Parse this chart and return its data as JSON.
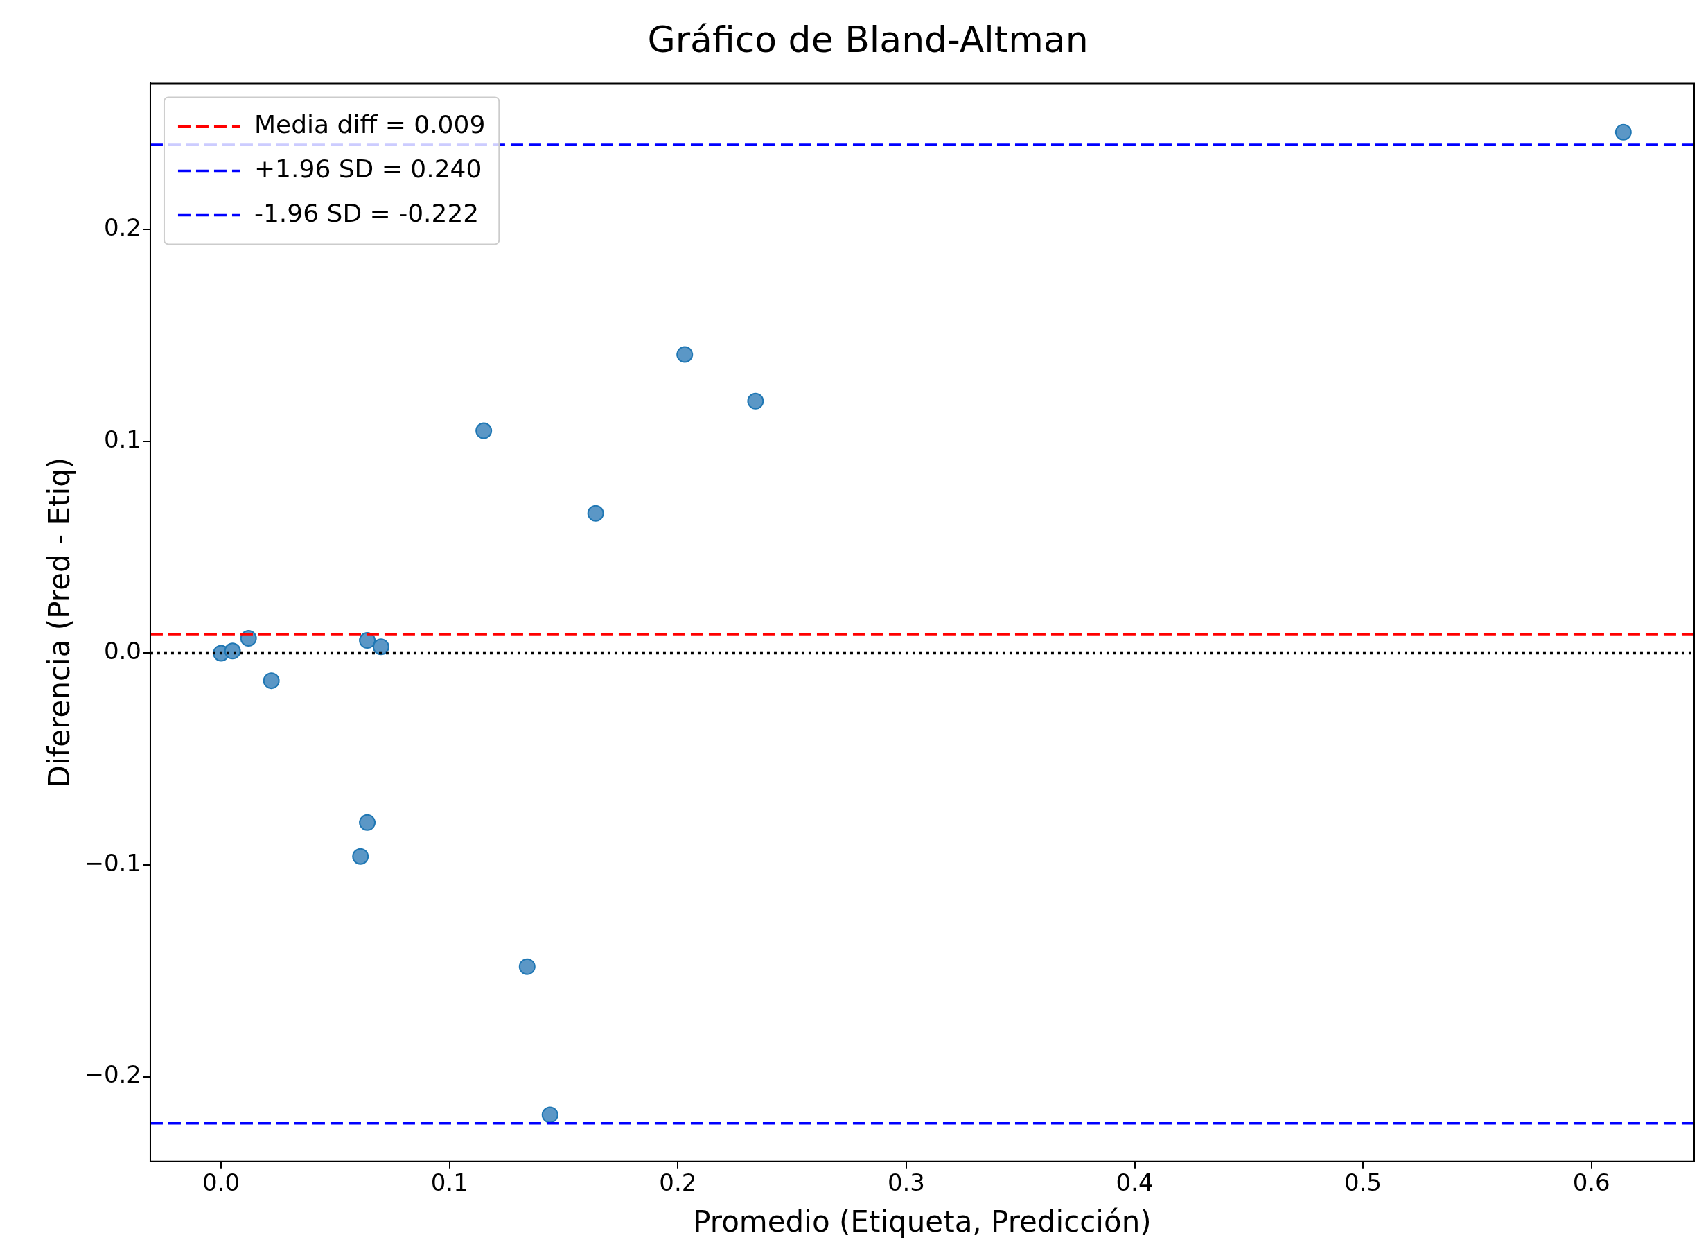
{
  "chart_data": {
    "type": "scatter",
    "title": "Gráfico de Bland-Altman",
    "xlabel": "Promedio (Etiqueta, Predicción)",
    "ylabel": "Diferencia (Pred - Etiq)",
    "x": [
      0.614,
      0.203,
      0.234,
      0.115,
      0.164,
      0,
      0.005,
      0.012,
      0.022,
      0.064,
      0.07,
      0.064,
      0.061,
      0.134,
      0.144
    ],
    "series": [
      {
        "color": "#5b97c6",
        "values": [
          0.246,
          0.141,
          0.119,
          0.105,
          0.066,
          0,
          0.001,
          0.007,
          -0.013,
          0.006,
          0.003,
          -0.08,
          -0.096,
          -0.148,
          -0.218
        ]
      }
    ],
    "xlim": [
      -0.031,
      0.645
    ],
    "ylim": [
      -0.24,
      0.269
    ],
    "xticks": [
      {
        "value": 0,
        "label": "0.0"
      },
      0.1,
      0.2,
      0.3,
      0.4,
      0.5,
      0.6
    ],
    "yticks": [
      {
        "value": -0.2,
        "label": "−0.2"
      },
      {
        "value": -0.1,
        "label": "−0.1"
      },
      {
        "value": 0,
        "label": "0.0"
      },
      0.1,
      0.2
    ],
    "ref_lines": [
      {
        "axis": "y",
        "value": 0.009,
        "label": "Media diff = 0.009",
        "color": "#ff0000",
        "line_style": "dashed"
      },
      {
        "axis": "y",
        "value": 0.24,
        "label": "+1.96 SD = 0.240",
        "color": "#0000ff",
        "line_style": "dashed"
      },
      {
        "axis": "y",
        "value": -0.222,
        "label": "-1.96 SD = -0.222",
        "color": "#0000ff",
        "line_style": "dashed"
      },
      {
        "axis": "y",
        "value": 0,
        "color": "#000000",
        "line_style": "dotted"
      }
    ],
    "marker": "circle",
    "grid": false,
    "legend": "top left"
  }
}
